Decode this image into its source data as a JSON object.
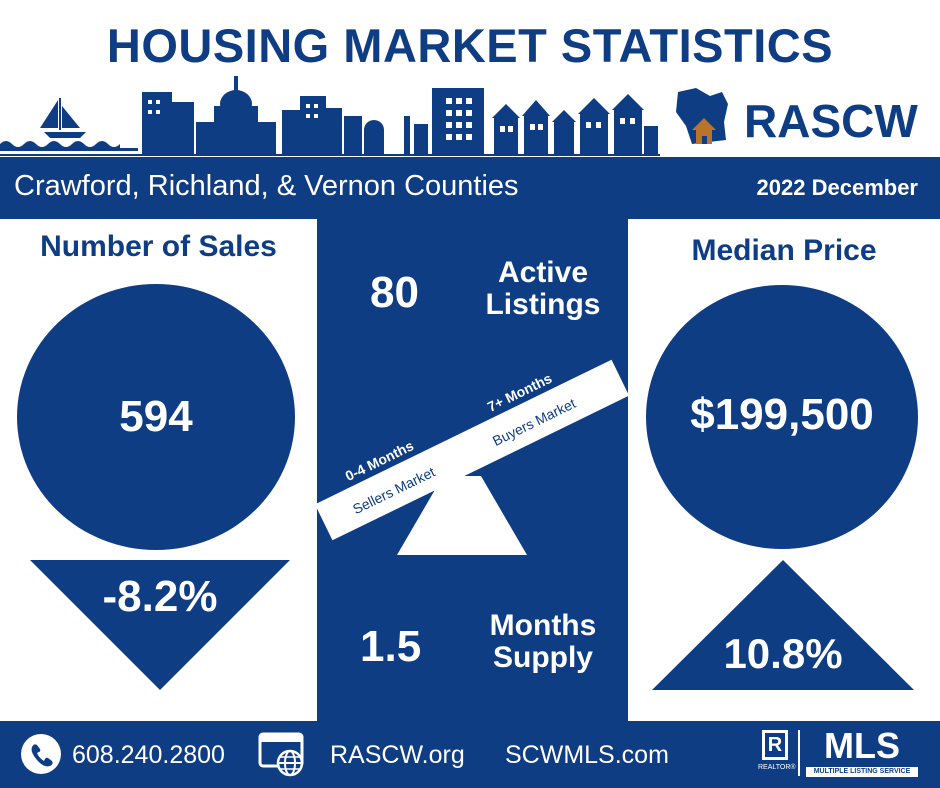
{
  "header": {
    "title": "HOUSING MARKET STATISTICS",
    "org": "RASCW"
  },
  "region": {
    "name": "Crawford, Richland, & Vernon Counties",
    "period": "2022 December"
  },
  "sales": {
    "heading": "Number of Sales",
    "value": "594",
    "change": "-8.2%",
    "direction": "down"
  },
  "price": {
    "heading": "Median Price",
    "value": "$199,500",
    "change": "10.8%",
    "direction": "up"
  },
  "listings": {
    "value": "80",
    "label_line1": "Active",
    "label_line2": "Listings"
  },
  "supply": {
    "value": "1.5",
    "label_line1": "Months",
    "label_line2": "Supply"
  },
  "scale": {
    "left_range": "0-4 Months",
    "left_label": "Sellers Market",
    "right_range": "7+ Months",
    "right_label": "Buyers Market"
  },
  "footer": {
    "phone": "608.240.2800",
    "site1": "RASCW.org",
    "site2": "SCWMLS.com",
    "mls_text": "MLS",
    "mls_subtext": "MULTIPLE LISTING SERVICE",
    "realtor_text": "REALTOR®"
  },
  "colors": {
    "navy": "#0f3d84",
    "white": "#ffffff",
    "house_accent": "#b8742b"
  }
}
